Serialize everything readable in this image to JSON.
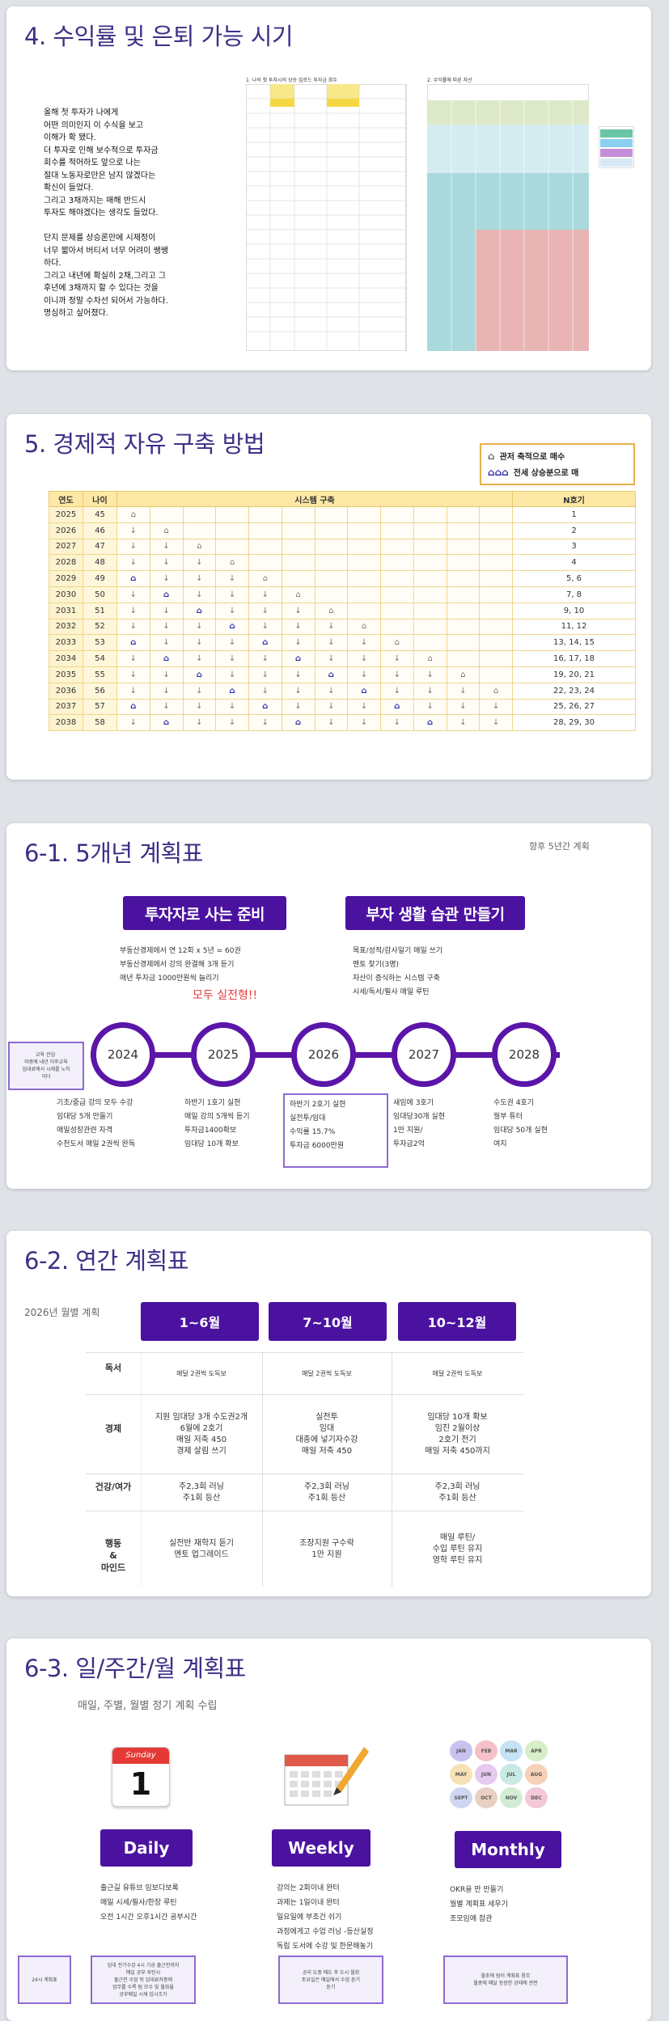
{
  "section4": {
    "title": "4. 수익률 및 은퇴 가능 시기",
    "body": "올해 첫 투자가 나에게\n어떤 의미인지 이 수식을 보고\n이해가 확 됐다.\n더 투자로 인해 보수적으로 투자금\n회수를 적어하도 앞으로 나는\n절대 노동자로만은 남지 않겠다는\n확신이 들었다.\n그리고 3채까지는 매해 반드시\n투자도 해야겠다는 생각도 들었다.\n\n단지 문제를 상승론만에 시제정이\n너무 짧아서 버티서 너무 어려이 쌩쌩\n하다.\n그리고 내년에 확실히 2채,그리고 그\n후년에 3채까지 할 수 있다는 것을\n이니까 정말 수차선 되어서 가능하다.\n명심하고 싶어졌다.",
    "sheet1_caption": "1. 나의 첫 투자시의 상승 업로드 투자금 회수",
    "sheet2_caption": "2. 수익률에 따른 자산"
  },
  "section5": {
    "title": "5. 경제적 자유 구축 방법",
    "legend": [
      "관저 축적으로 매수",
      "전세 상승분으로 매"
    ],
    "headers": [
      "연도",
      "나이",
      "시스템 구축",
      "N호기"
    ],
    "rows": [
      {
        "year": "2025",
        "age": "45",
        "n": "1"
      },
      {
        "year": "2026",
        "age": "46",
        "n": "2"
      },
      {
        "year": "2027",
        "age": "47",
        "n": "3"
      },
      {
        "year": "2028",
        "age": "48",
        "n": "4"
      },
      {
        "year": "2029",
        "age": "49",
        "n": "5, 6"
      },
      {
        "year": "2030",
        "age": "50",
        "n": "7, 8"
      },
      {
        "year": "2031",
        "age": "51",
        "n": "9, 10"
      },
      {
        "year": "2032",
        "age": "52",
        "n": "11, 12"
      },
      {
        "year": "2033",
        "age": "53",
        "n": "13, 14, 15"
      },
      {
        "year": "2034",
        "age": "54",
        "n": "16, 17, 18"
      },
      {
        "year": "2035",
        "age": "55",
        "n": "19, 20, 21"
      },
      {
        "year": "2036",
        "age": "56",
        "n": "22, 23, 24"
      },
      {
        "year": "2037",
        "age": "57",
        "n": "25, 26, 27"
      },
      {
        "year": "2038",
        "age": "58",
        "n": "28, 29, 30"
      }
    ]
  },
  "section61": {
    "title": "6-1. 5개년 계획표",
    "subtitle": "향후 5년간 계획",
    "btn_left": "투자자로 사는 준비",
    "btn_right": "부자 생활 습관 만들기",
    "left_lines": "부동산경제에서 연 12회 x 5년 = 60권\n부동산경제에서 강의 완결해 3개 듣기\n매년 투자금 1000만원씩 늘리기",
    "red_text": "모두 실전형!!",
    "right_lines": "목표/성적/감사일기 매일 쓰기\n멘토 찾기(3명)\n자산이 증식하는 시스템 구축\n시세/독서/필사 매일 루틴",
    "years": [
      "2024",
      "2025",
      "2026",
      "2027",
      "2028"
    ],
    "side_note": "교육 관심·\n마중에 내년 이후교육\n임대료에서 시제를 노하\n이다",
    "cols": [
      "기초/중급 강의 모두 수강\n임대당 5개 만들기\n매일성장관련 자격\n수천도서 매일 2권씩 완독",
      "하반기 1호기 실현\n매일 강의 5개씩 듣기\n투자금1400확보\n임대당 10개 확보",
      "하반기 2호기 실현\n실전투/임대\n수익률 15.7%\n투자금 6000만원",
      "새임에 3호기\n임대당30개 실현\n1만 지원/\n투자금2억",
      "수도권 4호기\n월부 튜터\n임대당 50개 실현\n여지"
    ]
  },
  "section62": {
    "title": "6-2. 연간 계획표",
    "subtitle": "2026년 월별 계획",
    "headers": [
      "1~6월",
      "7~10월",
      "10~12월"
    ],
    "rows": [
      {
        "label": "독서",
        "cells": [
          "매달 2권씩 도독보",
          "매달 2권씩 도독보",
          "매달 2권씩 도독보"
        ]
      },
      {
        "label": "경제",
        "cells": [
          "지원 임대당 3개 수도권2개\n6월에 2호기\n매일 저축 450\n경제 살림 쓰기",
          "실전투\n임대\n대충에 넣기자수강\n매일 저축 450",
          "임대당 10개 확보\n임진 2월이상\n2호기 전기\n매일 저축 450까지"
        ]
      },
      {
        "label": "건강/여가",
        "cells": [
          "주2,3회 러닝\n주1회 등산",
          "주2,3회 러닝\n주1회 등산",
          "주2,3회 러닝\n주1회 등산"
        ]
      },
      {
        "label": "행동\n&\n마인드",
        "cells": [
          "실전반 재학지 듣기\n멘토 업그레이드",
          "조장지원 구수락\n1만 지원",
          "매일 루틴/\n수입 루틴 유지\n영학 루틴 유지"
        ]
      }
    ]
  },
  "section63": {
    "title": "6-3. 일/주간/월 계획표",
    "subtitle": "매일, 주별, 월별 정기 계획 수립",
    "cal_day_label": "Sunday",
    "cal_day_num": "1",
    "months": [
      "JAN",
      "FEB",
      "MAR",
      "APR",
      "MAY",
      "JUN",
      "JUL",
      "AUG",
      "SEPT",
      "OCT",
      "NOV",
      "DEC"
    ],
    "buttons": [
      "Daily",
      "Weekly",
      "Monthly"
    ],
    "daily": "출근길 유튜브 임보다보록\n매일 시세/필사/한장 루틴\n오전 1시간 오후1시간 공부시간",
    "weekly": "강의는 2회이내 완터\n과제는 1일이내 완터\n일요일에 부조건 쉬기\n과정에게고 수업 러닝 -등산실정\n독립 도서에 수강 및 한문해놓기",
    "monthly": "OKR을 만 만들기\n월별 계획표 세우기\n조모임에 참관",
    "note_left": "24시 계획표",
    "note_daily": "임대 전기수강 4시 기상 출근전까지\n매일 공부 루틴시\n출근전 수업 뒤 임대료자중에\n업무를 수록 팀 모수 및 월화율\n공부매일 시세 임시조가",
    "note_weekly": "공리 도중 매도 후 도시 월회\n토요일은 매일에서 수업 듣기\n듣기",
    "note_monthly": "월초에 팀이 계획표 참조\n월중에 매달 등장한 상태에 관련"
  }
}
